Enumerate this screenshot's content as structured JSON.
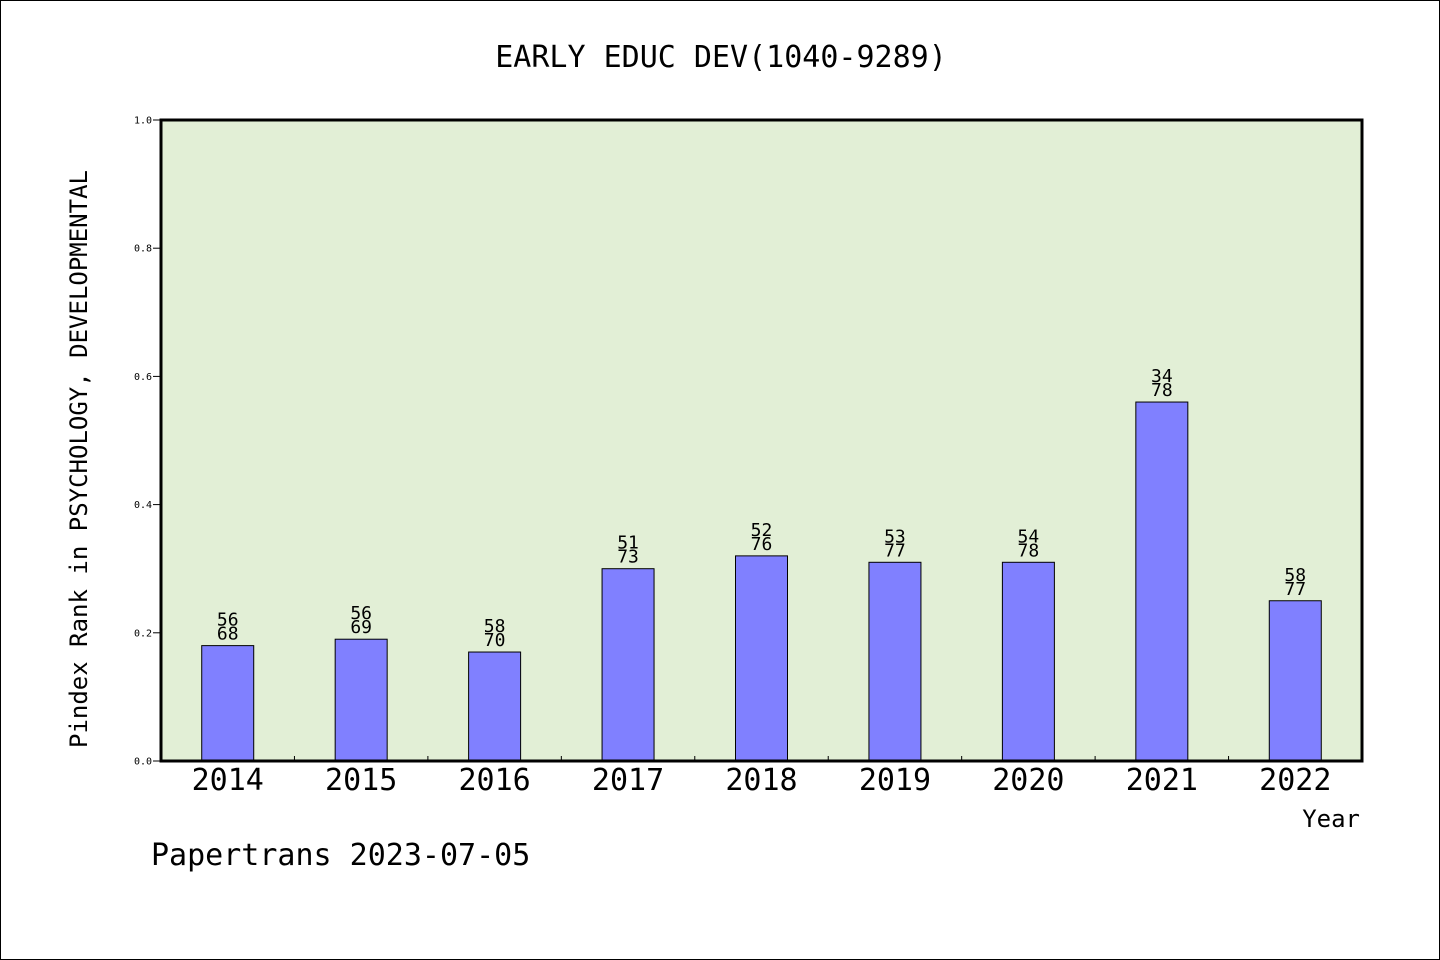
{
  "chart_data": {
    "type": "bar",
    "title": "EARLY EDUC DEV(1040-9289)",
    "xlabel": "Year",
    "ylabel": "Pindex Rank in PSYCHOLOGY, DEVELOPMENTAL",
    "ylim": [
      0.0,
      1.0
    ],
    "y_ticks": [
      "0.0",
      "0.2",
      "0.4",
      "0.6",
      "0.8",
      "1.0"
    ],
    "grid": false,
    "categories": [
      "2014",
      "2015",
      "2016",
      "2017",
      "2018",
      "2019",
      "2020",
      "2021",
      "2022"
    ],
    "values": [
      0.18,
      0.19,
      0.17,
      0.3,
      0.32,
      0.31,
      0.31,
      0.56,
      0.25
    ],
    "labels_top": [
      "56",
      "56",
      "58",
      "51",
      "52",
      "53",
      "54",
      "34",
      "58"
    ],
    "labels_bottom": [
      "68",
      "69",
      "70",
      "73",
      "76",
      "77",
      "78",
      "78",
      "77"
    ],
    "bar_color": "#8080ff",
    "plot_background": "#e2efd6"
  },
  "footer": {
    "text": "Papertrans 2023-07-05"
  }
}
